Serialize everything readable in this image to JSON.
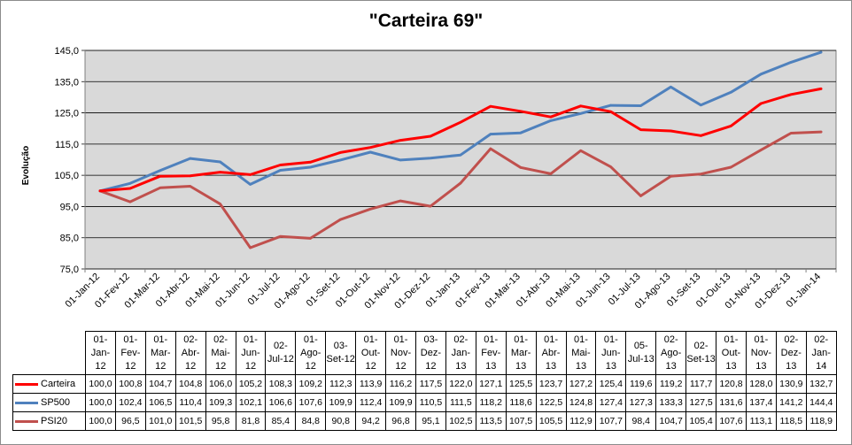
{
  "chart_data": {
    "type": "line",
    "title": "\"Carteira 69\"",
    "xlabel": "",
    "ylabel": "Evolução",
    "ylim": [
      75,
      145
    ],
    "yticks": [
      "75,0",
      "85,0",
      "95,0",
      "105,0",
      "115,0",
      "125,0",
      "135,0",
      "145,0"
    ],
    "grid": true,
    "legend": "bottom data table",
    "plot_background": "#d9d9d9",
    "categories": [
      "01-Jan-12",
      "01-Fev-12",
      "01-Mar-12",
      "02-Abr-12",
      "02-Mai-12",
      "01-Jun-12",
      "02-Jul-12",
      "01-Ago-12",
      "03-Set-12",
      "01-Out-12",
      "01-Nov-12",
      "03-Dez-12",
      "02-Jan-13",
      "01-Fev-13",
      "01-Mar-13",
      "01-Abr-13",
      "01-Mai-13",
      "01-Jun-13",
      "05-Jul-13",
      "02-Ago-13",
      "02-Set-13",
      "01-Out-13",
      "01-Nov-13",
      "02-Dez-13",
      "02-Jan-14"
    ],
    "axis_labels": [
      "01-Jan-12",
      "01-Fev-12",
      "01-Mar-12",
      "01-Abr-12",
      "01-Mai-12",
      "01-Jun-12",
      "01-Jul-12",
      "01-Ago-12",
      "01-Set-12",
      "01-Out-12",
      "01-Nov-12",
      "01-Dez-12",
      "01-Jan-13",
      "01-Fev-13",
      "01-Mar-13",
      "01-Abr-13",
      "01-Mai-13",
      "01-Jun-13",
      "01-Jul-13",
      "01-Ago-13",
      "01-Set-13",
      "01-Out-13",
      "01-Nov-13",
      "01-Dez-13",
      "01-Jan-14"
    ],
    "series": [
      {
        "name": "Carteira",
        "color": "#ff0000",
        "values": [
          100.0,
          100.8,
          104.7,
          104.8,
          106.0,
          105.2,
          108.3,
          109.2,
          112.3,
          113.9,
          116.2,
          117.5,
          122.0,
          127.1,
          125.5,
          123.7,
          127.2,
          125.4,
          119.6,
          119.2,
          117.7,
          120.8,
          128.0,
          130.9,
          132.7
        ],
        "labels": [
          "100,0",
          "100,8",
          "104,7",
          "104,8",
          "106,0",
          "105,2",
          "108,3",
          "109,2",
          "112,3",
          "113,9",
          "116,2",
          "117,5",
          "122,0",
          "127,1",
          "125,5",
          "123,7",
          "127,2",
          "125,4",
          "119,6",
          "119,2",
          "117,7",
          "120,8",
          "128,0",
          "130,9",
          "132,7"
        ]
      },
      {
        "name": "SP500",
        "color": "#4f81bd",
        "values": [
          100.0,
          102.4,
          106.5,
          110.4,
          109.3,
          102.1,
          106.6,
          107.6,
          109.9,
          112.4,
          109.9,
          110.5,
          111.5,
          118.2,
          118.6,
          122.5,
          124.8,
          127.4,
          127.3,
          133.3,
          127.5,
          131.6,
          137.4,
          141.2,
          144.4
        ],
        "labels": [
          "100,0",
          "102,4",
          "106,5",
          "110,4",
          "109,3",
          "102,1",
          "106,6",
          "107,6",
          "109,9",
          "112,4",
          "109,9",
          "110,5",
          "111,5",
          "118,2",
          "118,6",
          "122,5",
          "124,8",
          "127,4",
          "127,3",
          "133,3",
          "127,5",
          "131,6",
          "137,4",
          "141,2",
          "144,4"
        ]
      },
      {
        "name": "PSI20",
        "color": "#c0504d",
        "values": [
          100.0,
          96.5,
          101.0,
          101.5,
          95.8,
          81.8,
          85.4,
          84.8,
          90.8,
          94.2,
          96.8,
          95.1,
          102.5,
          113.5,
          107.5,
          105.5,
          112.9,
          107.7,
          98.4,
          104.7,
          105.4,
          107.6,
          113.1,
          118.5,
          118.9
        ],
        "labels": [
          "100,0",
          "96,5",
          "101,0",
          "101,5",
          "95,8",
          "81,8",
          "85,4",
          "84,8",
          "90,8",
          "94,2",
          "96,8",
          "95,1",
          "102,5",
          "113,5",
          "107,5",
          "105,5",
          "112,9",
          "107,7",
          "98,4",
          "104,7",
          "105,4",
          "107,6",
          "113,1",
          "118,5",
          "118,9"
        ]
      }
    ]
  }
}
